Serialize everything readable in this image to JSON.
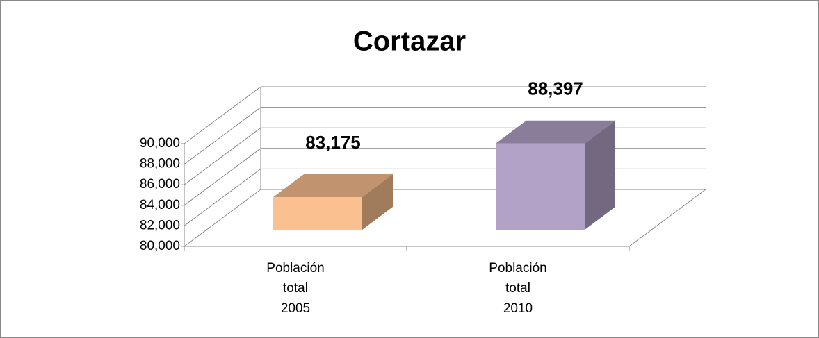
{
  "chart_data": {
    "type": "bar3d",
    "title": "Cortazar",
    "categories": [
      "Población total 2005",
      "Población total 2010"
    ],
    "values": [
      83175,
      88397
    ],
    "value_labels": [
      "83,175",
      "88,397"
    ],
    "colors": [
      "#fac090",
      "#b3a2c7"
    ],
    "ylim": [
      80000,
      90000
    ],
    "yticks": [
      {
        "value": 80000,
        "label": "80,000"
      },
      {
        "value": 82000,
        "label": "82,000"
      },
      {
        "value": 84000,
        "label": "84,000"
      },
      {
        "value": 86000,
        "label": "86,000"
      },
      {
        "value": 88000,
        "label": "88,000"
      },
      {
        "value": 90000,
        "label": "90,000"
      }
    ],
    "grid": true
  }
}
